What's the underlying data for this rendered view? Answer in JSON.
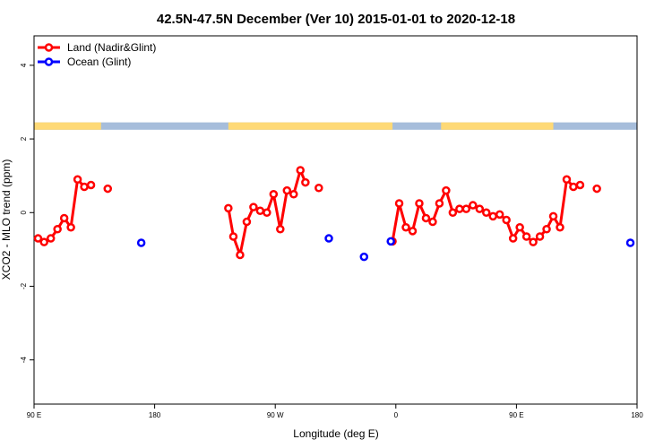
{
  "chart_data": {
    "type": "line",
    "title": "42.5N-47.5N December (Ver 10)   2015-01-01 to 2020-12-18",
    "xlabel": "Longitude (deg E)",
    "ylabel": "XCO2 - MLO trend (ppm)",
    "xlim": [
      90,
      270
    ],
    "ylim": [
      -5.2,
      4.8
    ],
    "x_ticks": [
      {
        "value": 90,
        "label": "90 E"
      },
      {
        "value": 126,
        "label": "180"
      },
      {
        "value": 162,
        "label": "90 W"
      },
      {
        "value": 198,
        "label": "0"
      },
      {
        "value": 234,
        "label": "90 E"
      },
      {
        "value": 270,
        "label": "180"
      }
    ],
    "y_ticks": [
      {
        "value": 4,
        "label": "4"
      },
      {
        "value": 2,
        "label": "2"
      },
      {
        "value": 0,
        "label": "0"
      },
      {
        "value": -2,
        "label": "-2"
      },
      {
        "value": -4,
        "label": "-4"
      }
    ],
    "legend_position": "top-left",
    "series": [
      {
        "name": "Land (Nadir&Glint)",
        "color": "#ff0000",
        "segments": [
          [
            [
              91.2,
              -0.7
            ],
            [
              93,
              -0.8
            ],
            [
              95,
              -0.7
            ],
            [
              97,
              -0.45
            ],
            [
              99,
              -0.15
            ],
            [
              101,
              -0.4
            ],
            [
              103,
              0.9
            ],
            [
              105,
              0.7
            ],
            [
              107,
              0.75
            ]
          ],
          [
            [
              112,
              0.65
            ]
          ],
          [
            [
              148,
              0.12
            ],
            [
              149.5,
              -0.65
            ],
            [
              151.5,
              -1.15
            ],
            [
              153.5,
              -0.25
            ],
            [
              155.5,
              0.15
            ],
            [
              157.5,
              0.05
            ],
            [
              159.5,
              0.0
            ],
            [
              161.5,
              0.5
            ],
            [
              163.5,
              -0.45
            ],
            [
              165.5,
              0.6
            ],
            [
              167.5,
              0.5
            ],
            [
              169.5,
              1.15
            ],
            [
              171,
              0.82
            ]
          ],
          [
            [
              175,
              0.67
            ]
          ],
          [
            [
              197,
              -0.78
            ],
            [
              199,
              0.25
            ],
            [
              201,
              -0.4
            ],
            [
              203,
              -0.5
            ],
            [
              205,
              0.25
            ],
            [
              207,
              -0.15
            ],
            [
              209,
              -0.25
            ],
            [
              211,
              0.25
            ],
            [
              213,
              0.6
            ],
            [
              215,
              0.0
            ],
            [
              217,
              0.1
            ],
            [
              219,
              0.1
            ],
            [
              221,
              0.2
            ],
            [
              223,
              0.1
            ],
            [
              225,
              0.0
            ],
            [
              227,
              -0.1
            ],
            [
              229,
              -0.05
            ],
            [
              231,
              -0.2
            ],
            [
              233,
              -0.7
            ],
            [
              235,
              -0.4
            ],
            [
              237,
              -0.65
            ],
            [
              239,
              -0.8
            ],
            [
              241,
              -0.65
            ],
            [
              243,
              -0.45
            ],
            [
              245,
              -0.1
            ],
            [
              247,
              -0.4
            ],
            [
              249,
              0.9
            ],
            [
              251,
              0.7
            ],
            [
              253,
              0.75
            ]
          ],
          [
            [
              258,
              0.65
            ]
          ]
        ]
      },
      {
        "name": "Ocean (Glint)",
        "color": "#0000ff",
        "segments": [
          [
            [
              122,
              -0.82
            ]
          ],
          [
            [
              178,
              -0.7
            ]
          ],
          [
            [
              188.5,
              -1.2
            ]
          ],
          [
            [
              196.5,
              -0.78
            ]
          ],
          [
            [
              268,
              -0.82
            ]
          ]
        ]
      }
    ],
    "land_mask": {
      "y_range": [
        2.25,
        2.45
      ],
      "ocean_color": "#a6bddb",
      "land_color": "#fed976",
      "land_intervals": [
        [
          90,
          110
        ],
        [
          148,
          197
        ],
        [
          211.5,
          245
        ]
      ]
    }
  }
}
